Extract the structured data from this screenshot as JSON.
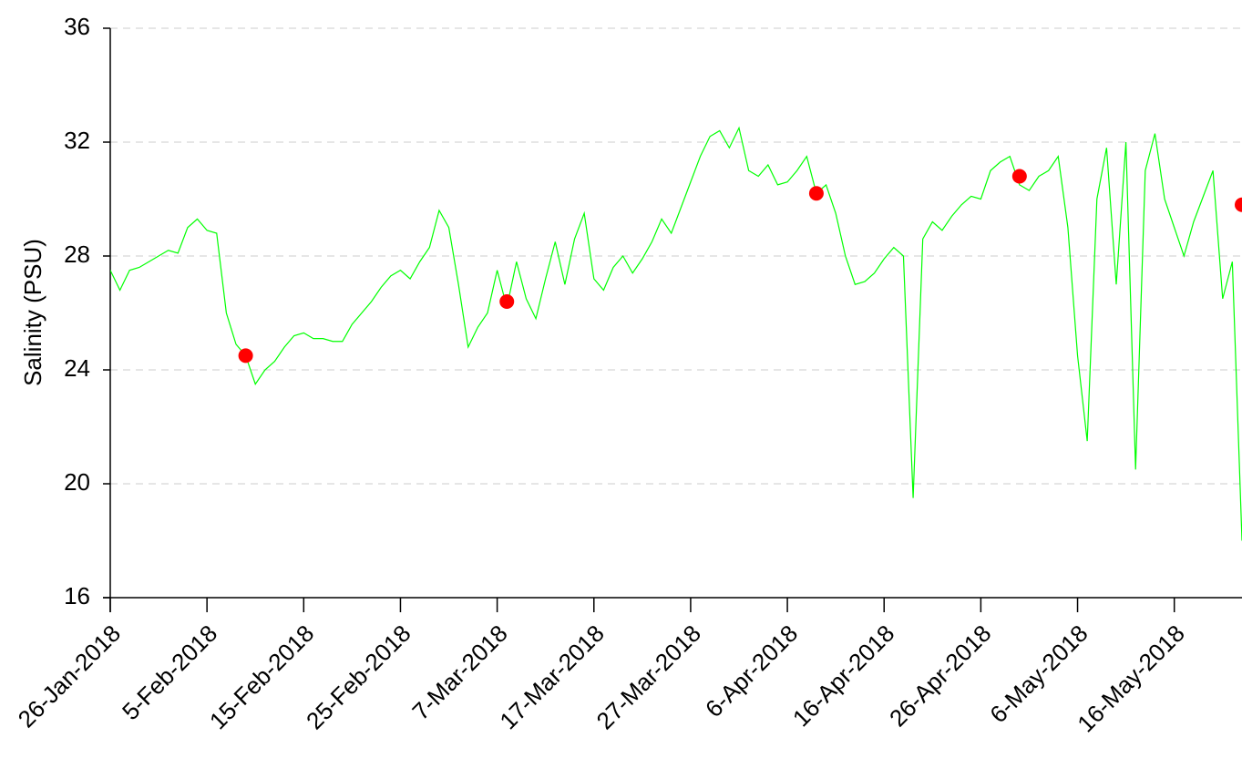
{
  "chart_data": {
    "type": "line",
    "ylabel": "Salinity (PSU)",
    "ylim": [
      16,
      36
    ],
    "yticks": [
      16,
      20,
      24,
      28,
      32,
      36
    ],
    "grid": true,
    "xlim": [
      "2018-01-26",
      "2018-05-23"
    ],
    "xticks": [
      {
        "value": "2018-01-26",
        "label": "26-Jan-2018"
      },
      {
        "value": "2018-02-05",
        "label": "5-Feb-2018"
      },
      {
        "value": "2018-02-15",
        "label": "15-Feb-2018"
      },
      {
        "value": "2018-02-25",
        "label": "25-Feb-2018"
      },
      {
        "value": "2018-03-07",
        "label": "7-Mar-2018"
      },
      {
        "value": "2018-03-17",
        "label": "17-Mar-2018"
      },
      {
        "value": "2018-03-27",
        "label": "27-Mar-2018"
      },
      {
        "value": "2018-04-06",
        "label": "6-Apr-2018"
      },
      {
        "value": "2018-04-16",
        "label": "16-Apr-2018"
      },
      {
        "value": "2018-04-26",
        "label": "26-Apr-2018"
      },
      {
        "value": "2018-05-06",
        "label": "6-May-2018"
      },
      {
        "value": "2018-05-16",
        "label": "16-May-2018"
      }
    ],
    "x": [
      "2018-01-26",
      "2018-01-27",
      "2018-01-28",
      "2018-01-29",
      "2018-01-30",
      "2018-01-31",
      "2018-02-01",
      "2018-02-02",
      "2018-02-03",
      "2018-02-04",
      "2018-02-05",
      "2018-02-06",
      "2018-02-07",
      "2018-02-08",
      "2018-02-09",
      "2018-02-10",
      "2018-02-11",
      "2018-02-12",
      "2018-02-13",
      "2018-02-14",
      "2018-02-15",
      "2018-02-16",
      "2018-02-17",
      "2018-02-18",
      "2018-02-19",
      "2018-02-20",
      "2018-02-21",
      "2018-02-22",
      "2018-02-23",
      "2018-02-24",
      "2018-02-25",
      "2018-02-26",
      "2018-02-27",
      "2018-02-28",
      "2018-03-01",
      "2018-03-02",
      "2018-03-03",
      "2018-03-04",
      "2018-03-05",
      "2018-03-06",
      "2018-03-07",
      "2018-03-08",
      "2018-03-09",
      "2018-03-10",
      "2018-03-11",
      "2018-03-12",
      "2018-03-13",
      "2018-03-14",
      "2018-03-15",
      "2018-03-16",
      "2018-03-17",
      "2018-03-18",
      "2018-03-19",
      "2018-03-20",
      "2018-03-21",
      "2018-03-22",
      "2018-03-23",
      "2018-03-24",
      "2018-03-25",
      "2018-03-26",
      "2018-03-27",
      "2018-03-28",
      "2018-03-29",
      "2018-03-30",
      "2018-03-31",
      "2018-04-01",
      "2018-04-02",
      "2018-04-03",
      "2018-04-04",
      "2018-04-05",
      "2018-04-06",
      "2018-04-07",
      "2018-04-08",
      "2018-04-09",
      "2018-04-10",
      "2018-04-11",
      "2018-04-12",
      "2018-04-13",
      "2018-04-14",
      "2018-04-15",
      "2018-04-16",
      "2018-04-17",
      "2018-04-18",
      "2018-04-19",
      "2018-04-20",
      "2018-04-21",
      "2018-04-22",
      "2018-04-23",
      "2018-04-24",
      "2018-04-25",
      "2018-04-26",
      "2018-04-27",
      "2018-04-28",
      "2018-04-29",
      "2018-04-30",
      "2018-05-01",
      "2018-05-02",
      "2018-05-03",
      "2018-05-04",
      "2018-05-05",
      "2018-05-06",
      "2018-05-07",
      "2018-05-08",
      "2018-05-09",
      "2018-05-10",
      "2018-05-11",
      "2018-05-12",
      "2018-05-13",
      "2018-05-14",
      "2018-05-15",
      "2018-05-16",
      "2018-05-17",
      "2018-05-18",
      "2018-05-19",
      "2018-05-20",
      "2018-05-21",
      "2018-05-22",
      "2018-05-23"
    ],
    "series": [
      {
        "color": "#00ff00",
        "values": [
          27.5,
          26.8,
          27.5,
          27.6,
          27.8,
          28.0,
          28.2,
          28.1,
          29.0,
          29.3,
          28.9,
          28.8,
          26.0,
          24.9,
          24.5,
          23.5,
          24.0,
          24.3,
          24.8,
          25.2,
          25.3,
          25.1,
          25.1,
          25.0,
          25.0,
          25.6,
          26.0,
          26.4,
          26.9,
          27.3,
          27.5,
          27.2,
          27.8,
          28.3,
          29.6,
          29.0,
          27.0,
          24.8,
          25.5,
          26.0,
          27.5,
          26.2,
          27.8,
          26.5,
          25.8,
          27.2,
          28.5,
          27.0,
          28.6,
          29.5,
          27.2,
          26.8,
          27.6,
          28.0,
          27.4,
          27.9,
          28.5,
          29.3,
          28.8,
          29.7,
          30.6,
          31.5,
          32.2,
          32.4,
          31.8,
          32.5,
          31.0,
          30.8,
          31.2,
          30.5,
          30.6,
          31.0,
          31.5,
          30.2,
          30.5,
          29.5,
          28.0,
          27.0,
          27.1,
          27.4,
          27.9,
          28.3,
          28.0,
          19.5,
          28.6,
          29.2,
          28.9,
          29.4,
          29.8,
          30.1,
          30.0,
          31.0,
          31.3,
          31.5,
          30.5,
          30.3,
          30.8,
          31.0,
          31.5,
          29.0,
          24.5,
          21.5,
          30.0,
          31.8,
          27.0,
          32.0,
          20.5,
          31.0,
          32.3,
          30.0,
          29.0,
          28.0,
          29.2,
          30.1,
          31.0,
          26.5,
          27.8,
          18.0
        ]
      },
      {
        "type": "scatter",
        "color": "#ff0000",
        "x": [
          "2018-02-09",
          "2018-03-08",
          "2018-04-09",
          "2018-04-30",
          "2018-05-23"
        ],
        "values": [
          24.5,
          26.4,
          30.2,
          30.8,
          29.8
        ]
      }
    ]
  }
}
